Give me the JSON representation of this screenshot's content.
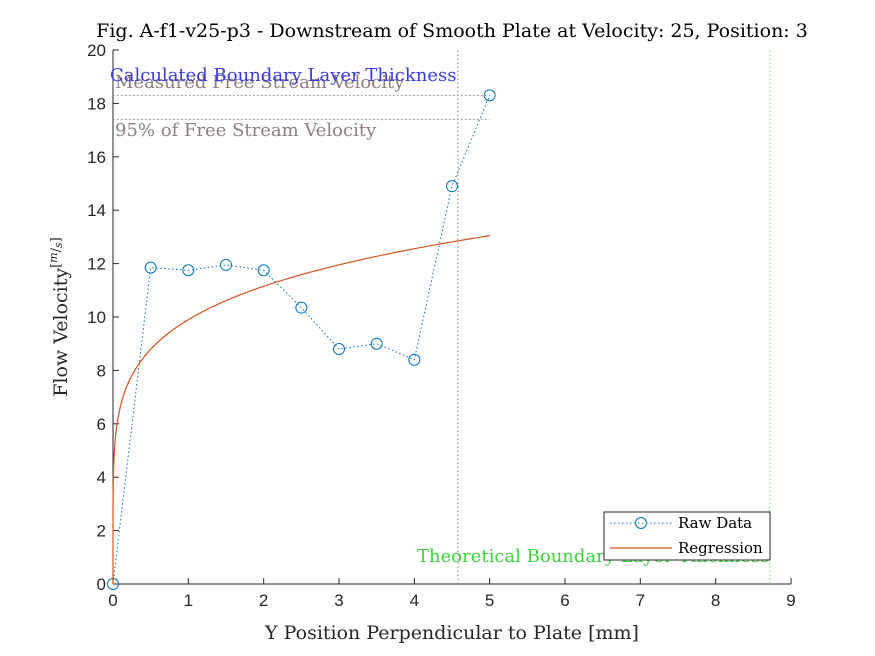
{
  "chart_data": {
    "type": "line",
    "title": "Fig. A-f1-v25-p3 - Downstream of Smooth Plate at Velocity: 25, Position: 3",
    "xlabel": "Y Position Perpendicular to Plate [mm]",
    "ylabel": "Flow Velocity",
    "ylabel_unit": "[m / s]",
    "ylabel_unit_num": "m",
    "ylabel_unit_den": "s",
    "xlim": [
      0,
      9
    ],
    "ylim": [
      0,
      20
    ],
    "xticks": [
      0,
      1,
      2,
      3,
      4,
      5,
      6,
      7,
      8,
      9
    ],
    "yticks": [
      0,
      2,
      4,
      6,
      8,
      10,
      12,
      14,
      16,
      18,
      20
    ],
    "grid": false,
    "legend_position": "bottom-right",
    "series": [
      {
        "name": "Raw Data",
        "style": "dotted-line-circle-markers",
        "color": "#0072BD",
        "x": [
          0,
          0.5,
          1,
          1.5,
          2,
          2.5,
          3,
          3.5,
          4,
          4.5,
          5
        ],
        "y": [
          0,
          11.85,
          11.75,
          11.95,
          11.75,
          10.35,
          8.8,
          9.0,
          8.4,
          14.9,
          18.3
        ]
      },
      {
        "name": "Regression",
        "style": "solid-line",
        "color": "#D95319",
        "model": "power-law",
        "coefficient": 9.9,
        "exponent": 0.1715,
        "x_range": [
          0,
          5
        ]
      }
    ],
    "reference_lines": [
      {
        "label": "Measured Free Stream Velocity",
        "orientation": "horizontal",
        "value": 18.3,
        "color": "#8C7E80",
        "style": "dotted"
      },
      {
        "label": "95% of Free Stream Velocity",
        "orientation": "horizontal",
        "value": 17.4,
        "color": "#8C7E80",
        "style": "dotted"
      },
      {
        "label": "Calculated Boundary Layer Thickness",
        "orientation": "vertical",
        "value": 4.58,
        "color": "#8C7E80",
        "label_color": "#3A3ADE",
        "style": "dotted"
      },
      {
        "label": "Theoretical Boundary Layer Thickness",
        "orientation": "vertical",
        "value": 8.72,
        "color": "#7ED957",
        "label_color": "#3CD43C",
        "style": "dotted"
      }
    ]
  }
}
